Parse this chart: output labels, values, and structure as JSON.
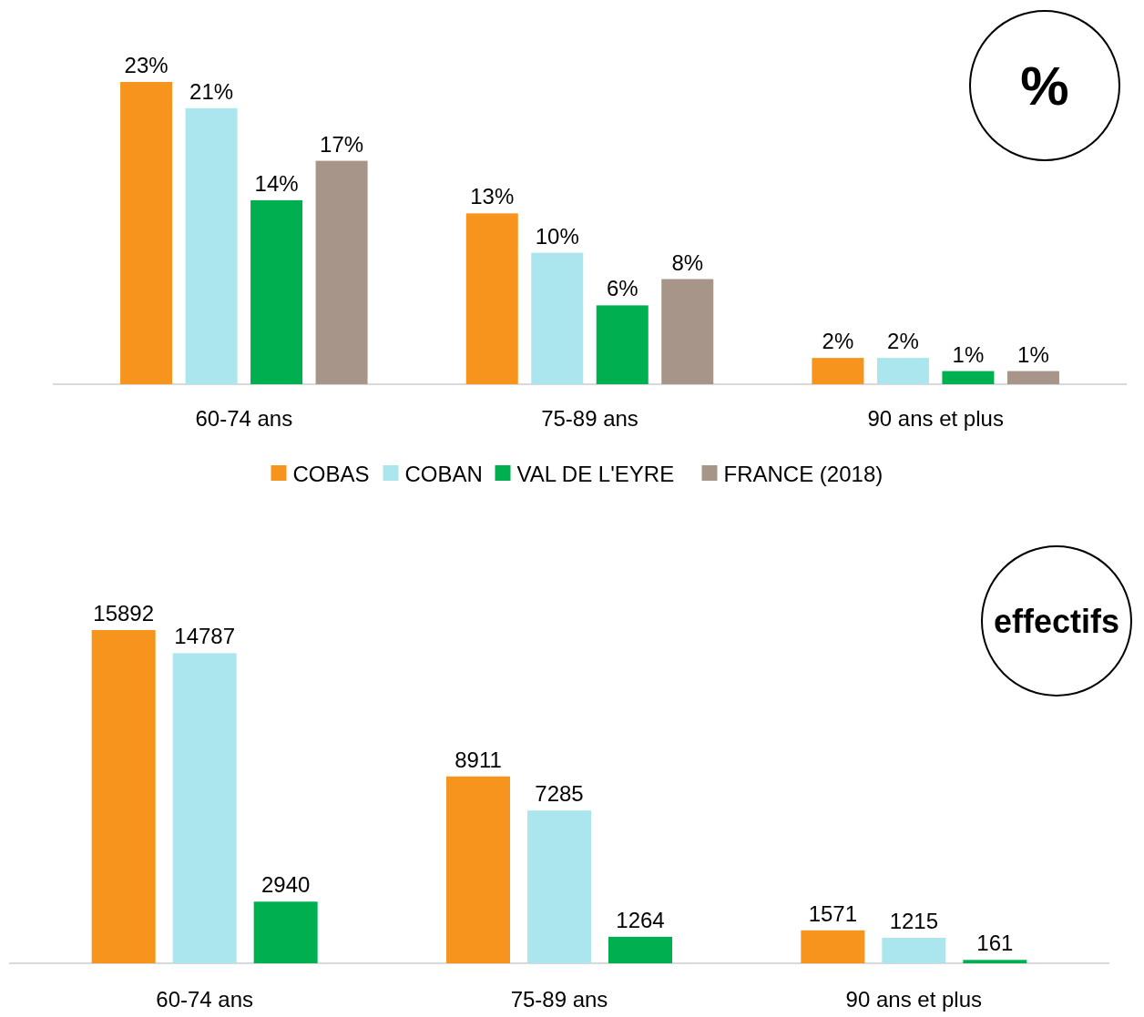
{
  "chart_data": [
    {
      "type": "bar",
      "categories": [
        "60-74 ans",
        "75-89 ans",
        "90 ans et plus"
      ],
      "series": [
        {
          "name": "COBAS",
          "color": "#f7941d",
          "values": [
            23,
            13,
            2
          ],
          "value_labels": [
            "23%",
            "13%",
            "2%"
          ]
        },
        {
          "name": "COBAN",
          "color": "#abe5ee",
          "values": [
            21,
            10,
            2
          ],
          "value_labels": [
            "21%",
            "10%",
            "2%"
          ]
        },
        {
          "name": "VAL DE L'EYRE",
          "color": "#00b050",
          "values": [
            14,
            6,
            1
          ],
          "value_labels": [
            "14%",
            "6%",
            "1%"
          ]
        },
        {
          "name": "FRANCE (2018)",
          "color": "#a69588",
          "values": [
            17,
            8,
            1
          ],
          "value_labels": [
            "17%",
            "8%",
            "1%"
          ]
        }
      ],
      "legend": "bottom",
      "annotations": [
        "%"
      ]
    },
    {
      "type": "bar",
      "categories": [
        "60-74 ans",
        "75-89 ans",
        "90 ans et plus"
      ],
      "series": [
        {
          "color": "#f7941d",
          "values": [
            15892,
            8911,
            1571
          ]
        },
        {
          "color": "#abe5ee",
          "values": [
            14787,
            7285,
            1215
          ]
        },
        {
          "color": "#00b050",
          "values": [
            2940,
            1264,
            161
          ]
        }
      ],
      "data_labels": true,
      "annotations": [
        "effectifs"
      ]
    }
  ]
}
